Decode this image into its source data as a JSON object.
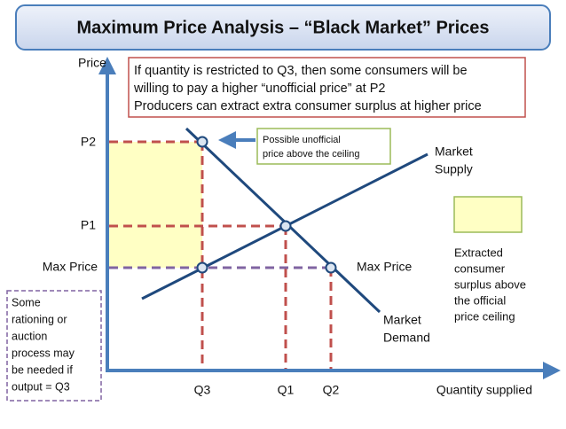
{
  "header": {
    "title": "Maximum Price Analysis – “Black Market” Prices"
  },
  "axes": {
    "y_label": "Price",
    "x_label": "Quantity supplied"
  },
  "price_labels": [
    "P2",
    "P1",
    "Max Price"
  ],
  "quantity_labels": [
    "Q3",
    "Q1",
    "Q2"
  ],
  "note": [
    "If quantity is restricted to Q3, then some consumers will be",
    "willing to pay a higher “unofficial price” at P2",
    "Producers can extract extra consumer surplus at higher price"
  ],
  "callout": [
    "Possible unofficial",
    "price above the ceiling"
  ],
  "supply_label": [
    "Market",
    "Supply"
  ],
  "demand_label": [
    "Market",
    "Demand"
  ],
  "max_price_right": "Max Price",
  "legend": [
    "Extracted",
    "consumer",
    "surplus above",
    "the official",
    "price ceiling"
  ],
  "rationing": [
    "Some",
    "rationing or",
    "auction",
    "process may",
    "be needed if",
    "output = Q3"
  ]
}
